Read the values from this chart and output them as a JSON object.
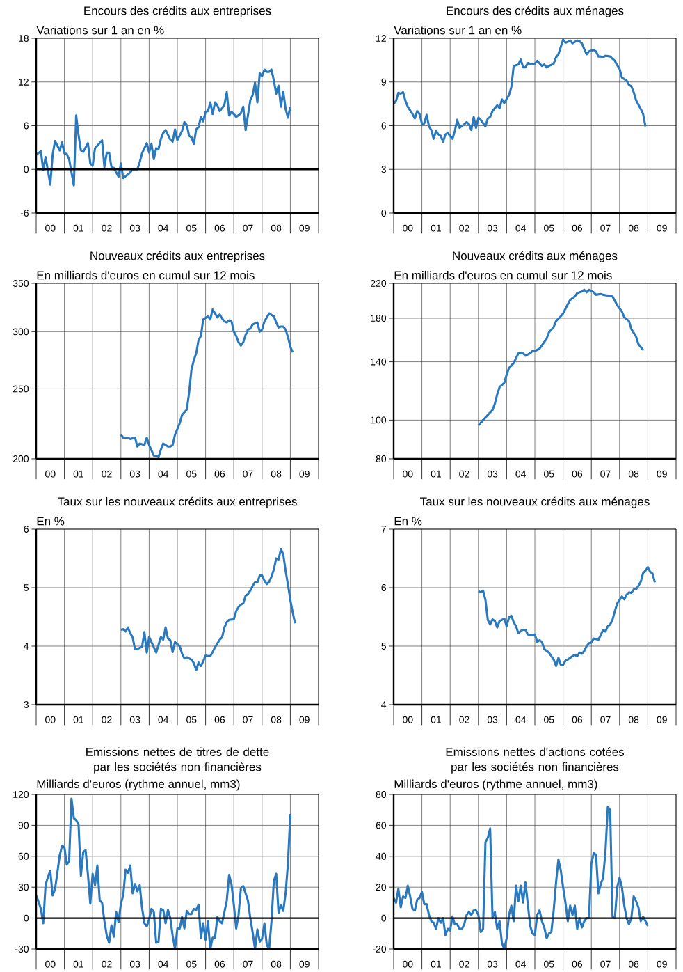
{
  "chart_data": [
    {
      "type": "line",
      "title": "Encours des crédits aux entreprises",
      "subtitle": "Variations sur 1 an en %",
      "color": "#2a78be",
      "x": [
        "2000-01",
        "2000-03",
        "2000-04",
        "2000-05",
        "2000-07",
        "2000-08",
        "2000-09",
        "2000-11",
        "2000-12",
        "2001-01",
        "2001-02",
        "2001-03",
        "2001-05",
        "2001-06",
        "2001-07",
        "2001-08",
        "2001-09",
        "2001-10",
        "2001-11",
        "2001-12",
        "2002-01",
        "2002-02",
        "2002-05",
        "2002-06",
        "2002-07",
        "2002-08",
        "2002-09",
        "2002-10",
        "2002-12",
        "2003-01",
        "2003-02",
        "2003-04",
        "2003-05",
        "2003-06",
        "2003-08",
        "2003-09",
        "2003-10",
        "2003-12",
        "2004-01",
        "2004-02",
        "2004-03",
        "2004-04",
        "2004-05",
        "2004-06",
        "2004-07",
        "2004-08",
        "2004-10",
        "2004-11",
        "2004-12",
        "2005-01",
        "2005-03",
        "2005-04",
        "2005-05",
        "2005-06",
        "2005-07",
        "2005-08",
        "2005-09",
        "2005-10",
        "2005-11",
        "2005-12",
        "2006-01",
        "2006-02",
        "2006-03",
        "2006-04",
        "2006-05",
        "2006-06",
        "2006-07",
        "2006-08",
        "2006-09",
        "2006-10",
        "2006-11",
        "2006-12",
        "2007-01",
        "2007-02",
        "2007-04",
        "2007-05",
        "2007-06",
        "2007-07",
        "2007-08",
        "2007-09",
        "2007-10",
        "2007-11",
        "2007-12",
        "2008-01",
        "2008-02",
        "2008-03",
        "2008-04",
        "2008-05",
        "2008-06",
        "2008-07",
        "2008-08",
        "2008-09",
        "2008-10",
        "2008-11",
        "2008-12",
        "2009-01"
      ],
      "values": [
        2.0,
        2.5,
        -0.1,
        1.7,
        -2.1,
        2.0,
        3.9,
        2.6,
        3.7,
        2.2,
        2.1,
        1.4,
        -2.2,
        7.4,
        4.7,
        2.6,
        2.4,
        3.0,
        3.6,
        0.8,
        0.5,
        2.9,
        4.0,
        0.3,
        2.3,
        2.3,
        0.3,
        0.2,
        -1.0,
        0.8,
        -1.2,
        -0.7,
        -0.4,
        0,
        0,
        1.0,
        2.2,
        3.6,
        2.3,
        3.5,
        1.4,
        2.9,
        2.8,
        4.2,
        5.0,
        5.4,
        4.1,
        3.8,
        5.5,
        4.0,
        5.3,
        6.5,
        6.1,
        4.6,
        4.4,
        3.5,
        5.5,
        5.8,
        7.2,
        6.6,
        7.9,
        8.0,
        9.2,
        7.6,
        9.2,
        8.8,
        8.0,
        8.4,
        8.9,
        10.6,
        7.4,
        7.9,
        7.6,
        7.2,
        7.7,
        8.6,
        5.4,
        7.4,
        9.5,
        10.2,
        11.9,
        9.2,
        13.2,
        12.8,
        13.7,
        13.4,
        13.4,
        13.7,
        12.2,
        10.4,
        11.5,
        8.6,
        10.7,
        8.3,
        7.1,
        8.6
      ],
      "xlim": [
        "2000-01",
        "2010-01"
      ],
      "xticks": [
        {
          "value": "2000-01",
          "label": null
        },
        {
          "value": "2001-01",
          "label": null
        },
        {
          "value": "2002-01",
          "label": null
        },
        {
          "value": "2003-01",
          "label": null
        },
        {
          "value": "2004-01",
          "label": null
        },
        {
          "value": "2005-01",
          "label": null
        },
        {
          "value": "2006-01",
          "label": null
        },
        {
          "value": "2007-01",
          "label": null
        },
        {
          "value": "2008-01",
          "label": null
        },
        {
          "value": "2009-01",
          "label": null
        },
        {
          "value": "2010-01",
          "label": null
        },
        {
          "value": "2000-07",
          "label": "00"
        },
        {
          "value": "2001-07",
          "label": "01"
        },
        {
          "value": "2002-07",
          "label": "02"
        },
        {
          "value": "2003-07",
          "label": "03"
        },
        {
          "value": "2004-07",
          "label": "04"
        },
        {
          "value": "2005-07",
          "label": "05"
        },
        {
          "value": "2006-07",
          "label": "06"
        },
        {
          "value": "2007-07",
          "label": "07"
        },
        {
          "value": "2008-07",
          "label": "08"
        },
        {
          "value": "2009-07",
          "label": "09"
        }
      ],
      "ylim": [
        -6,
        18
      ],
      "yticks": [
        -6,
        0,
        6,
        12,
        18
      ],
      "grid": true,
      "ref_lines": [
        {
          "axis": "y",
          "value": 0
        }
      ]
    },
    {
      "type": "line",
      "title": "Encours des crédits aux ménages",
      "subtitle": "Variations sur 1 an en %",
      "color": "#2a78be",
      "x": [
        "2000-01",
        "2000-02",
        "2000-03",
        "2000-04",
        "2000-05",
        "2000-06",
        "2000-07",
        "2000-09",
        "2000-10",
        "2000-11",
        "2000-12",
        "2001-01",
        "2001-02",
        "2001-03",
        "2001-04",
        "2001-05",
        "2001-06",
        "2001-07",
        "2001-08",
        "2001-09",
        "2001-10",
        "2001-11",
        "2001-12",
        "2002-02",
        "2002-03",
        "2002-04",
        "2002-05",
        "2002-07",
        "2002-08",
        "2002-09",
        "2002-10",
        "2002-11",
        "2002-12",
        "2003-01",
        "2003-02",
        "2003-04",
        "2003-05",
        "2003-06",
        "2003-07",
        "2003-09",
        "2003-10",
        "2003-11",
        "2003-12",
        "2004-02",
        "2004-03",
        "2004-04",
        "2004-06",
        "2004-07",
        "2004-08",
        "2004-09",
        "2004-10",
        "2004-12",
        "2005-01",
        "2005-02",
        "2005-04",
        "2005-05",
        "2005-06",
        "2005-07",
        "2005-09",
        "2005-10",
        "2005-11",
        "2006-01",
        "2006-02",
        "2006-03",
        "2006-04",
        "2006-05",
        "2006-07",
        "2006-08",
        "2006-09",
        "2006-10",
        "2006-11",
        "2006-12",
        "2007-02",
        "2007-03",
        "2007-04",
        "2007-05",
        "2007-06",
        "2007-07",
        "2007-09",
        "2007-10",
        "2007-11",
        "2007-12",
        "2008-01",
        "2008-02",
        "2008-04",
        "2008-05",
        "2008-06",
        "2008-07",
        "2008-08",
        "2008-10",
        "2008-11",
        "2008-12"
      ],
      "values": [
        7.5,
        7.7,
        8.25,
        8.2,
        8.3,
        7.7,
        7.3,
        6.8,
        6.5,
        7.0,
        6.8,
        6.15,
        6.15,
        6.75,
        5.95,
        5.7,
        5.1,
        5.65,
        5.4,
        5.3,
        4.9,
        5.4,
        5.5,
        5.1,
        5.65,
        6.4,
        5.85,
        6.1,
        6.25,
        6.1,
        5.7,
        6.6,
        5.85,
        6.55,
        6.4,
        5.95,
        6.5,
        6.6,
        7.0,
        7.4,
        7.2,
        7.8,
        7.55,
        8.1,
        8.65,
        10.1,
        10.2,
        10.55,
        10.0,
        10.0,
        10.3,
        10.2,
        10.25,
        10.45,
        10.1,
        10.2,
        10.0,
        10.1,
        10.25,
        10.7,
        10.9,
        11.9,
        11.7,
        11.75,
        11.85,
        11.65,
        11.85,
        11.8,
        11.65,
        11.25,
        10.9,
        11.1,
        11.2,
        11.1,
        10.75,
        10.75,
        10.7,
        10.8,
        10.75,
        10.6,
        10.45,
        10.15,
        9.9,
        9.3,
        9.1,
        8.8,
        8.7,
        8.3,
        7.75,
        7.15,
        6.8,
        5.95
      ],
      "xlim": [
        "2000-01",
        "2010-01"
      ],
      "xticks": [
        {
          "value": "2000-01",
          "label": null
        },
        {
          "value": "2001-01",
          "label": null
        },
        {
          "value": "2002-01",
          "label": null
        },
        {
          "value": "2003-01",
          "label": null
        },
        {
          "value": "2004-01",
          "label": null
        },
        {
          "value": "2005-01",
          "label": null
        },
        {
          "value": "2006-01",
          "label": null
        },
        {
          "value": "2007-01",
          "label": null
        },
        {
          "value": "2008-01",
          "label": null
        },
        {
          "value": "2009-01",
          "label": null
        },
        {
          "value": "2010-01",
          "label": null
        },
        {
          "value": "2000-07",
          "label": "00"
        },
        {
          "value": "2001-07",
          "label": "01"
        },
        {
          "value": "2002-07",
          "label": "02"
        },
        {
          "value": "2003-07",
          "label": "03"
        },
        {
          "value": "2004-07",
          "label": "04"
        },
        {
          "value": "2005-07",
          "label": "05"
        },
        {
          "value": "2006-07",
          "label": "06"
        },
        {
          "value": "2007-07",
          "label": "07"
        },
        {
          "value": "2008-07",
          "label": "08"
        },
        {
          "value": "2009-07",
          "label": "09"
        }
      ],
      "ylim": [
        0,
        12
      ],
      "yticks": [
        0,
        3,
        6,
        9,
        12
      ],
      "grid": true
    },
    {
      "type": "line",
      "title": "Nouveaux crédits aux entreprises",
      "subtitle": "En milliards d'euros en cumul sur 12 mois",
      "color": "#2a78be",
      "x": [
        "2003-01",
        "2003-02",
        "2003-04",
        "2003-05",
        "2003-07",
        "2003-08",
        "2003-09",
        "2003-11",
        "2003-12",
        "2004-01",
        "2004-03",
        "2004-04",
        "2004-05",
        "2004-06",
        "2004-07",
        "2004-09",
        "2004-10",
        "2004-11",
        "2004-12",
        "2005-02",
        "2005-03",
        "2005-05",
        "2005-06",
        "2005-07",
        "2005-08",
        "2005-09",
        "2005-10",
        "2005-11",
        "2005-12",
        "2006-02",
        "2006-03",
        "2006-04",
        "2006-05",
        "2006-06",
        "2006-07",
        "2006-08",
        "2006-09",
        "2006-10",
        "2006-11",
        "2006-12",
        "2007-01",
        "2007-02",
        "2007-03",
        "2007-04",
        "2007-05",
        "2007-06",
        "2007-07",
        "2007-08",
        "2007-09",
        "2007-11",
        "2007-12",
        "2008-01",
        "2008-02",
        "2008-03",
        "2008-04",
        "2008-06",
        "2008-07",
        "2008-08",
        "2008-09",
        "2008-10",
        "2008-11",
        "2008-12",
        "2009-01",
        "2009-02"
      ],
      "values": [
        216,
        214,
        214,
        213,
        214,
        208,
        210,
        209,
        214,
        209,
        202,
        202,
        201,
        206,
        210,
        208,
        208,
        209,
        216,
        224,
        230,
        234,
        247,
        266,
        274,
        280,
        292,
        296,
        312,
        315,
        312,
        322,
        318,
        314,
        317,
        313,
        310,
        309,
        311,
        310,
        300,
        296,
        290,
        287,
        290,
        297,
        302,
        303,
        307,
        309,
        300,
        302,
        310,
        314,
        318,
        315,
        309,
        304,
        305,
        305,
        302,
        295,
        286,
        281
      ],
      "xlim": [
        "2000-01",
        "2010-01"
      ],
      "xticks": [
        {
          "value": "2000-01",
          "label": null
        },
        {
          "value": "2001-01",
          "label": null
        },
        {
          "value": "2002-01",
          "label": null
        },
        {
          "value": "2003-01",
          "label": null
        },
        {
          "value": "2004-01",
          "label": null
        },
        {
          "value": "2005-01",
          "label": null
        },
        {
          "value": "2006-01",
          "label": null
        },
        {
          "value": "2007-01",
          "label": null
        },
        {
          "value": "2008-01",
          "label": null
        },
        {
          "value": "2009-01",
          "label": null
        },
        {
          "value": "2010-01",
          "label": null
        },
        {
          "value": "2000-07",
          "label": "00"
        },
        {
          "value": "2001-07",
          "label": "01"
        },
        {
          "value": "2002-07",
          "label": "02"
        },
        {
          "value": "2003-07",
          "label": "03"
        },
        {
          "value": "2004-07",
          "label": "04"
        },
        {
          "value": "2005-07",
          "label": "05"
        },
        {
          "value": "2006-07",
          "label": "06"
        },
        {
          "value": "2007-07",
          "label": "07"
        },
        {
          "value": "2008-07",
          "label": "08"
        },
        {
          "value": "2009-07",
          "label": "09"
        }
      ],
      "ylim": [
        200,
        350
      ],
      "yticks": [
        200,
        250,
        300,
        350
      ],
      "log": true,
      "grid": true
    },
    {
      "type": "line",
      "title": "Nouveaux crédits aux ménages",
      "subtitle": "En milliards d'euros en cumul sur 12 mois",
      "color": "#2a78be",
      "x": [
        "2003-01",
        "2003-03",
        "2003-05",
        "2003-07",
        "2003-08",
        "2003-09",
        "2003-10",
        "2003-12",
        "2004-01",
        "2004-02",
        "2004-04",
        "2004-05",
        "2004-06",
        "2004-08",
        "2004-09",
        "2004-11",
        "2004-12",
        "2005-01",
        "2005-03",
        "2005-04",
        "2005-06",
        "2005-07",
        "2005-09",
        "2005-10",
        "2005-12",
        "2006-01",
        "2006-02",
        "2006-03",
        "2006-04",
        "2006-06",
        "2006-07",
        "2006-09",
        "2006-10",
        "2006-11",
        "2006-12",
        "2007-02",
        "2007-03",
        "2007-05",
        "2007-06",
        "2007-08",
        "2007-10",
        "2007-11",
        "2007-12",
        "2008-02",
        "2008-03",
        "2008-05",
        "2008-06",
        "2008-08",
        "2008-09",
        "2008-11"
      ],
      "values": [
        97,
        100,
        103,
        106,
        110,
        116,
        121,
        124,
        130,
        135,
        139,
        143,
        147,
        147,
        145,
        147,
        149,
        149,
        151,
        154,
        160,
        166,
        171,
        177,
        182,
        185,
        190,
        195,
        200,
        204,
        208,
        210,
        212,
        209,
        212,
        209,
        206,
        207,
        206,
        205,
        204,
        199,
        194,
        187,
        181,
        177,
        169,
        162,
        155,
        150
      ],
      "xlim": [
        "2000-01",
        "2010-01"
      ],
      "xticks": [
        {
          "value": "2000-01",
          "label": null
        },
        {
          "value": "2001-01",
          "label": null
        },
        {
          "value": "2002-01",
          "label": null
        },
        {
          "value": "2003-01",
          "label": null
        },
        {
          "value": "2004-01",
          "label": null
        },
        {
          "value": "2005-01",
          "label": null
        },
        {
          "value": "2006-01",
          "label": null
        },
        {
          "value": "2007-01",
          "label": null
        },
        {
          "value": "2008-01",
          "label": null
        },
        {
          "value": "2009-01",
          "label": null
        },
        {
          "value": "2010-01",
          "label": null
        },
        {
          "value": "2000-07",
          "label": "00"
        },
        {
          "value": "2001-07",
          "label": "01"
        },
        {
          "value": "2002-07",
          "label": "02"
        },
        {
          "value": "2003-07",
          "label": "03"
        },
        {
          "value": "2004-07",
          "label": "04"
        },
        {
          "value": "2005-07",
          "label": "05"
        },
        {
          "value": "2006-07",
          "label": "06"
        },
        {
          "value": "2007-07",
          "label": "07"
        },
        {
          "value": "2008-07",
          "label": "08"
        },
        {
          "value": "2009-07",
          "label": "09"
        }
      ],
      "ylim": [
        80,
        220
      ],
      "yticks": [
        80,
        100,
        140,
        180,
        220
      ],
      "log": true,
      "grid": true
    },
    {
      "type": "line",
      "title": "Taux sur les nouveaux crédits aux entreprises",
      "subtitle": "En %",
      "color": "#2a78be",
      "x": [
        "2003-01",
        "2003-02",
        "2003-03",
        "2003-04",
        "2003-05",
        "2003-06",
        "2003-07",
        "2003-08",
        "2003-10",
        "2003-11",
        "2003-12",
        "2004-01",
        "2004-02",
        "2004-04",
        "2004-05",
        "2004-06",
        "2004-07",
        "2004-08",
        "2004-09",
        "2004-10",
        "2004-11",
        "2004-12",
        "2005-02",
        "2005-03",
        "2005-04",
        "2005-05",
        "2005-07",
        "2005-08",
        "2005-09",
        "2005-10",
        "2005-11",
        "2005-12",
        "2006-01",
        "2006-02",
        "2006-03",
        "2006-04",
        "2006-05",
        "2006-07",
        "2006-08",
        "2006-09",
        "2006-10",
        "2006-11",
        "2007-01",
        "2007-02",
        "2007-03",
        "2007-04",
        "2007-05",
        "2007-06",
        "2007-07",
        "2007-08",
        "2007-09",
        "2007-10",
        "2007-11",
        "2007-12",
        "2008-01",
        "2008-02",
        "2008-03",
        "2008-04",
        "2008-05",
        "2008-06",
        "2008-07",
        "2008-08",
        "2008-09",
        "2008-10",
        "2008-11",
        "2008-12",
        "2009-01",
        "2009-02",
        "2009-03"
      ],
      "values": [
        4.28,
        4.29,
        4.25,
        4.32,
        4.22,
        4.15,
        3.95,
        3.95,
        3.99,
        4.24,
        3.89,
        4.16,
        4.07,
        3.89,
        4.02,
        4.16,
        4.11,
        4.32,
        4.13,
        4.1,
        3.9,
        4.07,
        4.0,
        3.87,
        3.79,
        3.81,
        3.77,
        3.71,
        3.59,
        3.72,
        3.66,
        3.74,
        3.84,
        3.83,
        3.83,
        3.9,
        3.98,
        4.11,
        4.15,
        4.32,
        4.41,
        4.45,
        4.46,
        4.6,
        4.67,
        4.71,
        4.73,
        4.86,
        4.89,
        4.95,
        5.03,
        5.09,
        5.09,
        5.21,
        5.21,
        5.12,
        5.06,
        5.1,
        5.19,
        5.31,
        5.5,
        5.48,
        5.66,
        5.57,
        5.29,
        5.05,
        4.79,
        4.58,
        4.39
      ],
      "xlim": [
        "2000-01",
        "2010-01"
      ],
      "xticks": [
        {
          "value": "2000-01",
          "label": null
        },
        {
          "value": "2001-01",
          "label": null
        },
        {
          "value": "2002-01",
          "label": null
        },
        {
          "value": "2003-01",
          "label": null
        },
        {
          "value": "2004-01",
          "label": null
        },
        {
          "value": "2005-01",
          "label": null
        },
        {
          "value": "2006-01",
          "label": null
        },
        {
          "value": "2007-01",
          "label": null
        },
        {
          "value": "2008-01",
          "label": null
        },
        {
          "value": "2009-01",
          "label": null
        },
        {
          "value": "2010-01",
          "label": null
        },
        {
          "value": "2000-07",
          "label": "00"
        },
        {
          "value": "2001-07",
          "label": "01"
        },
        {
          "value": "2002-07",
          "label": "02"
        },
        {
          "value": "2003-07",
          "label": "03"
        },
        {
          "value": "2004-07",
          "label": "04"
        },
        {
          "value": "2005-07",
          "label": "05"
        },
        {
          "value": "2006-07",
          "label": "06"
        },
        {
          "value": "2007-07",
          "label": "07"
        },
        {
          "value": "2008-07",
          "label": "08"
        },
        {
          "value": "2009-07",
          "label": "09"
        }
      ],
      "ylim": [
        3,
        6
      ],
      "yticks": [
        3,
        4,
        5,
        6
      ],
      "grid": true
    },
    {
      "type": "line",
      "title": "Taux sur les nouveaux crédits aux ménages",
      "subtitle": "En %",
      "color": "#2a78be",
      "x": [
        "2003-01",
        "2003-02",
        "2003-03",
        "2003-04",
        "2003-05",
        "2003-06",
        "2003-07",
        "2003-08",
        "2003-09",
        "2003-10",
        "2003-12",
        "2004-01",
        "2004-02",
        "2004-03",
        "2004-04",
        "2004-05",
        "2004-06",
        "2004-07",
        "2004-08",
        "2004-09",
        "2004-10",
        "2004-12",
        "2005-01",
        "2005-02",
        "2005-03",
        "2005-04",
        "2005-05",
        "2005-06",
        "2005-07",
        "2005-09",
        "2005-10",
        "2005-11",
        "2005-12",
        "2006-01",
        "2006-02",
        "2006-03",
        "2006-05",
        "2006-06",
        "2006-07",
        "2006-08",
        "2006-09",
        "2006-10",
        "2006-11",
        "2006-12",
        "2007-01",
        "2007-02",
        "2007-04",
        "2007-05",
        "2007-06",
        "2007-07",
        "2007-08",
        "2007-09",
        "2007-10",
        "2007-11",
        "2007-12",
        "2008-02",
        "2008-03",
        "2008-04",
        "2008-05",
        "2008-06",
        "2008-07",
        "2008-08",
        "2008-09",
        "2008-10",
        "2008-11",
        "2008-12",
        "2009-01",
        "2009-02",
        "2009-03",
        "2009-04"
      ],
      "values": [
        5.94,
        5.92,
        5.95,
        5.79,
        5.45,
        5.37,
        5.46,
        5.43,
        5.32,
        5.43,
        5.47,
        5.34,
        5.49,
        5.52,
        5.41,
        5.34,
        5.22,
        5.26,
        5.28,
        5.28,
        5.2,
        5.19,
        5.2,
        5.07,
        5.1,
        5.07,
        4.95,
        4.92,
        4.89,
        4.77,
        4.66,
        4.8,
        4.68,
        4.68,
        4.75,
        4.77,
        4.83,
        4.85,
        4.83,
        4.89,
        4.87,
        4.92,
        5.0,
        5.05,
        5.06,
        5.13,
        5.11,
        5.19,
        5.28,
        5.25,
        5.34,
        5.37,
        5.45,
        5.6,
        5.73,
        5.85,
        5.8,
        5.88,
        5.92,
        5.91,
        5.97,
        5.97,
        6.03,
        6.1,
        6.25,
        6.29,
        6.35,
        6.27,
        6.24,
        6.09
      ],
      "xlim": [
        "2000-01",
        "2010-01"
      ],
      "xticks": [
        {
          "value": "2000-01",
          "label": null
        },
        {
          "value": "2001-01",
          "label": null
        },
        {
          "value": "2002-01",
          "label": null
        },
        {
          "value": "2003-01",
          "label": null
        },
        {
          "value": "2004-01",
          "label": null
        },
        {
          "value": "2005-01",
          "label": null
        },
        {
          "value": "2006-01",
          "label": null
        },
        {
          "value": "2007-01",
          "label": null
        },
        {
          "value": "2008-01",
          "label": null
        },
        {
          "value": "2009-01",
          "label": null
        },
        {
          "value": "2010-01",
          "label": null
        },
        {
          "value": "2000-07",
          "label": "00"
        },
        {
          "value": "2001-07",
          "label": "01"
        },
        {
          "value": "2002-07",
          "label": "02"
        },
        {
          "value": "2003-07",
          "label": "03"
        },
        {
          "value": "2004-07",
          "label": "04"
        },
        {
          "value": "2005-07",
          "label": "05"
        },
        {
          "value": "2006-07",
          "label": "06"
        },
        {
          "value": "2007-07",
          "label": "07"
        },
        {
          "value": "2008-07",
          "label": "08"
        },
        {
          "value": "2009-07",
          "label": "09"
        }
      ],
      "ylim": [
        4,
        7
      ],
      "yticks": [
        4,
        5,
        6,
        7
      ],
      "grid": true
    },
    {
      "type": "line",
      "title": "Emissions nettes de titres de dette par les sociétés non financières",
      "subtitle": "Milliards d'euros (rythme annuel, mm3)",
      "color": "#2a78be",
      "x": [
        "2000-01",
        "2000-02",
        "2000-03",
        "2000-04",
        "2000-05",
        "2000-06",
        "2000-07",
        "2000-08",
        "2000-09",
        "2000-10",
        "2000-11",
        "2000-12",
        "2001-01",
        "2001-02",
        "2001-03",
        "2001-04",
        "2001-05",
        "2001-06",
        "2001-07",
        "2001-08",
        "2001-09",
        "2001-10",
        "2001-11",
        "2001-12",
        "2002-01",
        "2002-02",
        "2002-03",
        "2002-04",
        "2002-05",
        "2002-06",
        "2002-07",
        "2002-08",
        "2002-09",
        "2002-10",
        "2002-11",
        "2002-12",
        "2003-01",
        "2003-02",
        "2003-03",
        "2003-04",
        "2003-05",
        "2003-06",
        "2003-07",
        "2003-08",
        "2003-09",
        "2003-10",
        "2003-11",
        "2003-12",
        "2004-01",
        "2004-02",
        "2004-03",
        "2004-04",
        "2004-05",
        "2004-06",
        "2004-07",
        "2004-08",
        "2004-09",
        "2004-10",
        "2004-11",
        "2004-12",
        "2005-01",
        "2005-02",
        "2005-03",
        "2005-04",
        "2005-05",
        "2005-06",
        "2005-07",
        "2005-08",
        "2005-09",
        "2005-10",
        "2005-11",
        "2005-12",
        "2006-01",
        "2006-02",
        "2006-03",
        "2006-04",
        "2006-05",
        "2006-06",
        "2006-07",
        "2006-08",
        "2006-09",
        "2006-10",
        "2006-11",
        "2006-12",
        "2007-01",
        "2007-02",
        "2007-03",
        "2007-04",
        "2007-05",
        "2007-06",
        "2007-07",
        "2007-08",
        "2007-09",
        "2007-10",
        "2007-11",
        "2007-12",
        "2008-01",
        "2008-02",
        "2008-03",
        "2008-04",
        "2008-05",
        "2008-06",
        "2008-07",
        "2008-08",
        "2008-09",
        "2008-10",
        "2008-11",
        "2008-12",
        "2009-01"
      ],
      "values": [
        22,
        16,
        9,
        -5,
        32,
        40,
        46,
        22,
        28,
        44,
        61,
        70,
        69,
        52,
        55,
        116,
        97,
        95,
        91,
        41,
        64,
        66,
        42,
        14,
        43,
        32,
        51,
        17,
        15,
        -3,
        -17,
        -24,
        -7,
        -18,
        6,
        -4,
        14,
        22,
        47,
        44,
        51,
        24,
        33,
        26,
        32,
        10,
        -5,
        -8,
        -1,
        9,
        6,
        -24,
        -23,
        9,
        8,
        -5,
        8,
        0,
        -17,
        -30,
        -10,
        -10,
        1,
        -10,
        7,
        4,
        4,
        9,
        8,
        13,
        -19,
        -5,
        -21,
        -3,
        -30,
        -19,
        -19,
        1,
        -3,
        -5,
        6,
        17,
        42,
        33,
        13,
        -10,
        3,
        29,
        31,
        24,
        17,
        0,
        -14,
        -30,
        -11,
        -23,
        -20,
        -5,
        -26,
        -30,
        -3,
        36,
        43,
        5,
        13,
        7,
        24,
        53,
        101
      ],
      "xlim": [
        "2000-01",
        "2010-01"
      ],
      "xticks": [
        {
          "value": "2000-01",
          "label": null
        },
        {
          "value": "2001-01",
          "label": null
        },
        {
          "value": "2002-01",
          "label": null
        },
        {
          "value": "2003-01",
          "label": null
        },
        {
          "value": "2004-01",
          "label": null
        },
        {
          "value": "2005-01",
          "label": null
        },
        {
          "value": "2006-01",
          "label": null
        },
        {
          "value": "2007-01",
          "label": null
        },
        {
          "value": "2008-01",
          "label": null
        },
        {
          "value": "2009-01",
          "label": null
        },
        {
          "value": "2010-01",
          "label": null
        },
        {
          "value": "2000-07",
          "label": "00"
        },
        {
          "value": "2001-07",
          "label": "01"
        },
        {
          "value": "2002-07",
          "label": "02"
        },
        {
          "value": "2003-07",
          "label": "03"
        },
        {
          "value": "2004-07",
          "label": "04"
        },
        {
          "value": "2005-07",
          "label": "05"
        },
        {
          "value": "2006-07",
          "label": "06"
        },
        {
          "value": "2007-07",
          "label": "07"
        },
        {
          "value": "2008-07",
          "label": "08"
        },
        {
          "value": "2009-07",
          "label": "09"
        }
      ],
      "ylim": [
        -30,
        120
      ],
      "yticks": [
        -30,
        0,
        30,
        60,
        90,
        120
      ],
      "grid": true,
      "ref_lines": [
        {
          "axis": "y",
          "value": 0
        }
      ]
    },
    {
      "type": "line",
      "title": "Emissions nettes d'actions cotées par les sociétés non financières",
      "subtitle": "Milliards d'euros (rythme annuel, mm3)",
      "color": "#2a78be",
      "x": [
        "2000-01",
        "2000-02",
        "2000-03",
        "2000-04",
        "2000-05",
        "2000-06",
        "2000-07",
        "2000-08",
        "2000-09",
        "2000-10",
        "2000-11",
        "2000-12",
        "2001-01",
        "2001-02",
        "2001-03",
        "2001-04",
        "2001-05",
        "2001-06",
        "2001-07",
        "2001-08",
        "2001-09",
        "2001-10",
        "2001-11",
        "2001-12",
        "2002-01",
        "2002-02",
        "2002-03",
        "2002-04",
        "2002-05",
        "2002-06",
        "2002-07",
        "2002-08",
        "2002-09",
        "2002-10",
        "2002-11",
        "2002-12",
        "2003-01",
        "2003-02",
        "2003-03",
        "2003-04",
        "2003-05",
        "2003-06",
        "2003-07",
        "2003-08",
        "2003-09",
        "2003-10",
        "2003-11",
        "2003-12",
        "2004-01",
        "2004-02",
        "2004-03",
        "2004-04",
        "2004-05",
        "2004-06",
        "2004-07",
        "2004-08",
        "2004-09",
        "2004-10",
        "2004-11",
        "2004-12",
        "2005-01",
        "2005-02",
        "2005-03",
        "2005-04",
        "2005-05",
        "2005-06",
        "2005-07",
        "2005-08",
        "2005-09",
        "2005-10",
        "2005-11",
        "2005-12",
        "2006-01",
        "2006-02",
        "2006-03",
        "2006-04",
        "2006-05",
        "2006-06",
        "2006-07",
        "2006-08",
        "2006-09",
        "2006-10",
        "2006-11",
        "2006-12",
        "2007-01",
        "2007-02",
        "2007-03",
        "2007-04",
        "2007-05",
        "2007-06",
        "2007-07",
        "2007-08",
        "2007-09",
        "2007-10",
        "2007-11",
        "2007-12",
        "2008-01",
        "2008-02",
        "2008-03",
        "2008-04",
        "2008-05",
        "2008-06",
        "2008-07",
        "2008-08",
        "2008-09",
        "2008-10",
        "2008-11",
        "2008-12",
        "2009-01"
      ],
      "values": [
        13,
        10,
        19,
        7,
        14,
        13,
        21,
        14,
        6,
        5,
        12,
        13,
        17,
        9,
        9,
        2,
        -2,
        -3,
        -7,
        0,
        -3,
        0,
        -11,
        -7,
        -8,
        1,
        -4,
        -4,
        -7,
        -7,
        -4,
        2,
        4,
        2,
        5,
        5,
        2,
        -9,
        -7,
        49,
        52,
        58,
        0,
        4,
        -7,
        -2,
        -16,
        -20,
        -13,
        2,
        8,
        -2,
        21,
        11,
        21,
        10,
        23,
        9,
        -5,
        -10,
        -11,
        2,
        5,
        -2,
        -6,
        -13,
        -10,
        -9,
        5,
        23,
        38,
        31,
        20,
        10,
        -2,
        8,
        2,
        8,
        -7,
        0,
        -6,
        -2,
        0,
        0,
        35,
        42,
        41,
        16,
        22,
        26,
        43,
        72,
        70,
        1,
        0,
        20,
        26,
        20,
        8,
        0,
        -4,
        0,
        14,
        11,
        7,
        -2,
        1,
        -2,
        -5
      ],
      "xlim": [
        "2000-01",
        "2010-01"
      ],
      "xticks": [
        {
          "value": "2000-01",
          "label": null
        },
        {
          "value": "2001-01",
          "label": null
        },
        {
          "value": "2002-01",
          "label": null
        },
        {
          "value": "2003-01",
          "label": null
        },
        {
          "value": "2004-01",
          "label": null
        },
        {
          "value": "2005-01",
          "label": null
        },
        {
          "value": "2006-01",
          "label": null
        },
        {
          "value": "2007-01",
          "label": null
        },
        {
          "value": "2008-01",
          "label": null
        },
        {
          "value": "2009-01",
          "label": null
        },
        {
          "value": "2010-01",
          "label": null
        },
        {
          "value": "2000-07",
          "label": "00"
        },
        {
          "value": "2001-07",
          "label": "01"
        },
        {
          "value": "2002-07",
          "label": "02"
        },
        {
          "value": "2003-07",
          "label": "03"
        },
        {
          "value": "2004-07",
          "label": "04"
        },
        {
          "value": "2005-07",
          "label": "05"
        },
        {
          "value": "2006-07",
          "label": "06"
        },
        {
          "value": "2007-07",
          "label": "07"
        },
        {
          "value": "2008-07",
          "label": "08"
        },
        {
          "value": "2009-07",
          "label": "09"
        }
      ],
      "ylim": [
        -20,
        80
      ],
      "yticks": [
        -20,
        0,
        20,
        40,
        60,
        80
      ],
      "grid": true,
      "ref_lines": [
        {
          "axis": "y",
          "value": 0
        }
      ]
    }
  ]
}
